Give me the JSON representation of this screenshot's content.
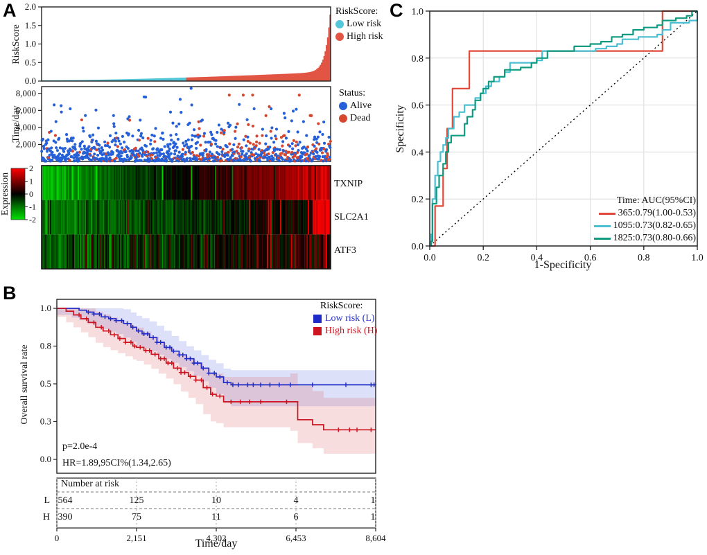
{
  "figure": {
    "panel_a_label": "A",
    "panel_b_label": "B",
    "panel_c_label": "C"
  },
  "chart_data": [
    {
      "id": "riskscore-distribution",
      "type": "bar",
      "ylabel": "RiskScore",
      "ylim": [
        0.0,
        2.0
      ],
      "yticks": [
        0.0,
        0.5,
        1.0,
        1.5,
        2.0
      ],
      "ytick_labels": [
        "0.0",
        "0.5",
        "1.0",
        "1.5",
        "2.0"
      ],
      "n_samples": 954,
      "n_bars": 240,
      "cutoff_fraction": 0.5,
      "value_profile": {
        "base": 0.02,
        "a": 0.23,
        "p": 1.6,
        "b": 1.75,
        "q": 60
      },
      "legend": {
        "title": "RiskScore:",
        "items": [
          {
            "label": "Low risk",
            "color": "#53C6D8"
          },
          {
            "label": "High risk",
            "color": "#E25443"
          }
        ]
      }
    },
    {
      "id": "survival-status-scatter",
      "type": "scatter",
      "ylabel": "Time/day",
      "ylim": [
        0,
        8800
      ],
      "yticks": [
        2000,
        4000,
        6000,
        8000
      ],
      "ytick_labels": [
        "2,000",
        "4,000",
        "6,000",
        "8,000"
      ],
      "n_points": 954,
      "seed": 42,
      "y_exp_mean": 1300,
      "dead_prob_base": 0.1,
      "dead_prob_slope": 0.28,
      "legend": {
        "title": "Status:",
        "items": [
          {
            "label": "Alive",
            "color": "#2560D8"
          },
          {
            "label": "Dead",
            "color": "#D5472F"
          }
        ]
      }
    },
    {
      "id": "gene-expression-heatmap",
      "type": "heatmap",
      "columns": 240,
      "seed": 7,
      "rows": [
        {
          "label": "TXNIP",
          "start": -1.7,
          "slope": 3.4,
          "noise": 0.5,
          "streak_prob": 0.05,
          "streak_shift": -1.6
        },
        {
          "label": "SLC2A1",
          "start": -1.2,
          "slope": 1.5,
          "noise": 0.7,
          "streak_prob": 0.06,
          "streak_shift": 1.6,
          "tail_from": 0.94,
          "tail_value": 1.4
        },
        {
          "label": "ATF3",
          "start": -0.9,
          "slope": 1.3,
          "noise": 1.0,
          "streak_prob": 0.09,
          "streak_shift": 1.2
        }
      ],
      "colorbar": {
        "label": "Expression",
        "ticks": [
          2,
          1,
          0,
          -1,
          -2
        ],
        "max_color": "#FF0000",
        "mid_color": "#000000",
        "min_color": "#00E000"
      }
    },
    {
      "id": "kaplan-meier-overall-survival",
      "type": "line",
      "xlabel": "Time/day",
      "ylabel": "Overall survival rate",
      "xticks": [
        0,
        2151,
        4302,
        6453,
        8604
      ],
      "xtick_labels": [
        "0",
        "2,151",
        "4,302",
        "6,453",
        "8,604"
      ],
      "ytick_values": [
        1.0,
        0.8,
        0.5,
        0.3,
        0.0
      ],
      "ytick_labels": [
        "1.0",
        "0.8",
        "0.5",
        "0.3",
        "0.0"
      ],
      "ytick_spacing": "even",
      "annotations": [
        "p=2.0e-4",
        "HR=1.89,95CI%(1.34,2.65)"
      ],
      "legend": {
        "title": "RiskScore:",
        "items": [
          {
            "label": "Low risk (L)",
            "color": "#1F2BC8"
          },
          {
            "label": "High risk (H)",
            "color": "#CC1520"
          }
        ]
      },
      "series": [
        {
          "name": "low",
          "color": "#1F2BC8",
          "ci_fill": "rgba(80,100,220,0.20)",
          "ci_w0": 0.035,
          "ci_w1": 0.155,
          "points": [
            [
              0,
              1
            ],
            [
              400,
              1
            ],
            [
              600,
              0.99
            ],
            [
              800,
              0.98
            ],
            [
              1000,
              0.97
            ],
            [
              1200,
              0.955
            ],
            [
              1400,
              0.945
            ],
            [
              1600,
              0.935
            ],
            [
              1800,
              0.92
            ],
            [
              2000,
              0.9
            ],
            [
              2151,
              0.88
            ],
            [
              2300,
              0.865
            ],
            [
              2500,
              0.845
            ],
            [
              2700,
              0.82
            ],
            [
              2900,
              0.79
            ],
            [
              3100,
              0.76
            ],
            [
              3300,
              0.73
            ],
            [
              3500,
              0.7
            ],
            [
              3700,
              0.665
            ],
            [
              3900,
              0.625
            ],
            [
              4100,
              0.585
            ],
            [
              4302,
              0.555
            ],
            [
              4500,
              0.51
            ],
            [
              4700,
              0.495
            ],
            [
              8604,
              0.495
            ]
          ],
          "censors": [
            850,
            1000,
            1150,
            1300,
            1450,
            1600,
            1750,
            1900,
            2050,
            2200,
            2350,
            2450,
            2600,
            2700,
            2800,
            2950,
            3050,
            3150,
            3300,
            3400,
            3500,
            3600,
            3700,
            3800,
            3950,
            4100,
            4250,
            4400,
            4600,
            4750,
            4900,
            5150,
            5300,
            5500,
            5750,
            6000,
            6300,
            6900,
            7800,
            8480,
            8560
          ]
        },
        {
          "name": "high",
          "color": "#CC1520",
          "ci_fill": "rgba(225,100,110,0.22)",
          "ci_w0": 0.045,
          "ci_w1": 0.21,
          "points": [
            [
              0,
              1
            ],
            [
              250,
              0.985
            ],
            [
              450,
              0.965
            ],
            [
              650,
              0.945
            ],
            [
              850,
              0.925
            ],
            [
              1050,
              0.9
            ],
            [
              1250,
              0.88
            ],
            [
              1450,
              0.86
            ],
            [
              1650,
              0.84
            ],
            [
              1850,
              0.82
            ],
            [
              2050,
              0.8
            ],
            [
              2151,
              0.79
            ],
            [
              2350,
              0.765
            ],
            [
              2550,
              0.735
            ],
            [
              2750,
              0.7
            ],
            [
              2950,
              0.665
            ],
            [
              3150,
              0.625
            ],
            [
              3350,
              0.59
            ],
            [
              3550,
              0.56
            ],
            [
              3750,
              0.53
            ],
            [
              3950,
              0.48
            ],
            [
              4150,
              0.445
            ],
            [
              4302,
              0.435
            ],
            [
              4500,
              0.405
            ],
            [
              6300,
              0.405
            ],
            [
              6500,
              0.31
            ],
            [
              6900,
              0.275
            ],
            [
              7200,
              0.235
            ],
            [
              8604,
              0.235
            ]
          ],
          "censors": [
            600,
            800,
            1000,
            1200,
            1400,
            1550,
            1700,
            1850,
            2000,
            2100,
            2250,
            2400,
            2500,
            2650,
            2800,
            2900,
            3000,
            3100,
            3250,
            3350,
            3450,
            3600,
            3750,
            3900,
            4050,
            4200,
            4400,
            4700,
            4950,
            5200,
            5500,
            6200,
            7600,
            7900,
            8100,
            8480
          ]
        }
      ],
      "risk_table": {
        "header": "Number at risk",
        "rows": [
          {
            "label": "L",
            "color": "#1F2BC8",
            "values": [
              "564",
              "125",
              "10",
              "4",
              "1"
            ]
          },
          {
            "label": "H",
            "color": "#CC1520",
            "values": [
              "390",
              "75",
              "11",
              "6",
              "1"
            ]
          }
        ]
      }
    },
    {
      "id": "time-dependent-roc",
      "type": "line",
      "xlabel": "1-Specificity",
      "ylabel": "Specificity",
      "xticks": [
        0.0,
        0.2,
        0.4,
        0.6,
        0.8,
        1.0
      ],
      "xtick_labels": [
        "0.0",
        "0.2",
        "0.4",
        "0.6",
        "0.8",
        "1.0"
      ],
      "yticks": [
        0.0,
        0.2,
        0.4,
        0.6,
        0.8,
        1.0
      ],
      "ytick_labels": [
        "0.0",
        "0.2",
        "0.4",
        "0.6",
        "0.8",
        "1.0"
      ],
      "grid": true,
      "diagonal_reference": true,
      "legend": {
        "title": "Time:  AUC(95%CI)",
        "items": [
          {
            "label": "365:0.79(1.00-0.53)",
            "color": "#E2493A"
          },
          {
            "label": "1095:0.73(0.82-0.65)",
            "color": "#4ABFD3"
          },
          {
            "label": "1825:0.73(0.80-0.66)",
            "color": "#0F9B80"
          }
        ]
      },
      "series": [
        {
          "name": "365",
          "color": "#E2493A",
          "points": [
            [
              0,
              0
            ],
            [
              0.02,
              0.17
            ],
            [
              0.05,
              0.33
            ],
            [
              0.065,
              0.5
            ],
            [
              0.085,
              0.67
            ],
            [
              0.148,
              0.83
            ],
            [
              0.87,
              1.0
            ],
            [
              1,
              1
            ]
          ]
        },
        {
          "name": "1095",
          "color": "#4ABFD3",
          "points": [
            [
              0,
              0
            ],
            [
              0.005,
              0.05
            ],
            [
              0.01,
              0.2
            ],
            [
              0.02,
              0.3
            ],
            [
              0.03,
              0.36
            ],
            [
              0.04,
              0.4
            ],
            [
              0.05,
              0.43
            ],
            [
              0.06,
              0.46
            ],
            [
              0.07,
              0.5
            ],
            [
              0.09,
              0.55
            ],
            [
              0.11,
              0.57
            ],
            [
              0.13,
              0.6
            ],
            [
              0.16,
              0.6
            ],
            [
              0.17,
              0.63
            ],
            [
              0.19,
              0.65
            ],
            [
              0.21,
              0.68
            ],
            [
              0.23,
              0.7
            ],
            [
              0.26,
              0.72
            ],
            [
              0.28,
              0.74
            ],
            [
              0.3,
              0.78
            ],
            [
              0.4,
              0.79
            ],
            [
              0.42,
              0.83
            ],
            [
              0.58,
              0.83
            ],
            [
              0.62,
              0.84
            ],
            [
              0.66,
              0.85
            ],
            [
              0.7,
              0.86
            ],
            [
              0.72,
              0.88
            ],
            [
              0.78,
              0.89
            ],
            [
              0.82,
              0.89
            ],
            [
              0.85,
              0.9
            ],
            [
              0.87,
              0.92
            ],
            [
              0.9,
              0.95
            ],
            [
              0.95,
              0.95
            ],
            [
              0.97,
              0.96
            ],
            [
              1,
              1
            ]
          ]
        },
        {
          "name": "1825",
          "color": "#0F9B80",
          "points": [
            [
              0,
              0
            ],
            [
              0.005,
              0.02
            ],
            [
              0.01,
              0.18
            ],
            [
              0.025,
              0.25
            ],
            [
              0.035,
              0.3
            ],
            [
              0.05,
              0.35
            ],
            [
              0.06,
              0.4
            ],
            [
              0.07,
              0.44
            ],
            [
              0.08,
              0.47
            ],
            [
              0.125,
              0.47
            ],
            [
              0.13,
              0.52
            ],
            [
              0.14,
              0.55
            ],
            [
              0.16,
              0.58
            ],
            [
              0.17,
              0.62
            ],
            [
              0.19,
              0.65
            ],
            [
              0.2,
              0.67
            ],
            [
              0.22,
              0.7
            ],
            [
              0.24,
              0.72
            ],
            [
              0.28,
              0.75
            ],
            [
              0.34,
              0.76
            ],
            [
              0.38,
              0.78
            ],
            [
              0.4,
              0.8
            ],
            [
              0.44,
              0.83
            ],
            [
              0.54,
              0.85
            ],
            [
              0.6,
              0.86
            ],
            [
              0.64,
              0.87
            ],
            [
              0.68,
              0.89
            ],
            [
              0.72,
              0.9
            ],
            [
              0.76,
              0.92
            ],
            [
              0.8,
              0.93
            ],
            [
              0.85,
              0.94
            ],
            [
              0.87,
              0.96
            ],
            [
              0.92,
              0.97
            ],
            [
              0.96,
              0.98
            ],
            [
              0.98,
              1.0
            ],
            [
              1,
              1
            ]
          ]
        }
      ]
    }
  ]
}
